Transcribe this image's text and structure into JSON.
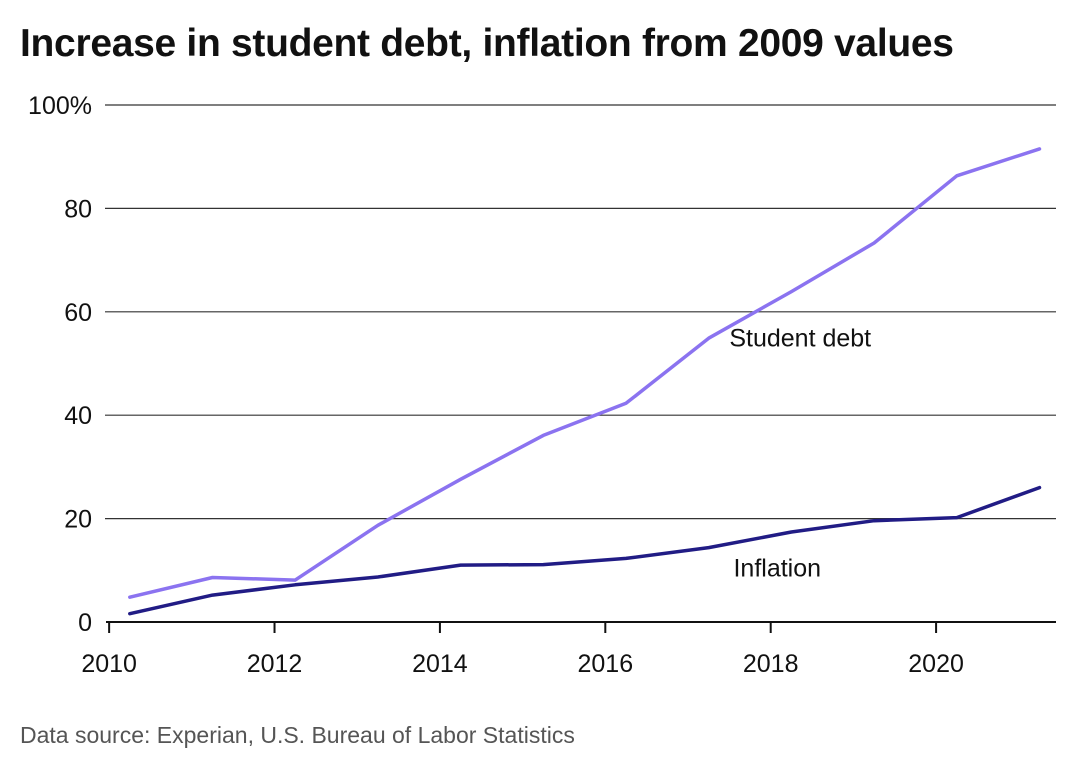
{
  "chart_data": {
    "type": "line",
    "title": "Increase in student debt, inflation from 2009 values",
    "source": "Data source: Experian, U.S. Bureau of Labor Statistics",
    "xlabel": "",
    "ylabel": "",
    "xlim": [
      2009.95,
      2021.45
    ],
    "ylim": [
      0,
      100
    ],
    "x_ticks": [
      2010,
      2012,
      2014,
      2016,
      2018,
      2020
    ],
    "y_ticks": [
      {
        "value": 0,
        "label": "0"
      },
      {
        "value": 20,
        "label": "20"
      },
      {
        "value": 40,
        "label": "40"
      },
      {
        "value": 60,
        "label": "60"
      },
      {
        "value": 80,
        "label": "80"
      },
      {
        "value": 100,
        "label": "100%"
      }
    ],
    "grid": true,
    "x": [
      2010.25,
      2011.25,
      2012.25,
      2013.25,
      2014.25,
      2015.25,
      2016.25,
      2017.25,
      2018.25,
      2019.25,
      2020.25,
      2021.25
    ],
    "series": [
      {
        "name": "Student debt",
        "color": "#8b73f0",
        "values": [
          4.8,
          8.6,
          8.1,
          18.7,
          27.6,
          36.1,
          42.3,
          54.9,
          63.9,
          73.3,
          86.3,
          91.5
        ],
        "label_at": [
          2017.5,
          53.3
        ]
      },
      {
        "name": "Inflation",
        "color": "#211c85",
        "values": [
          1.6,
          5.2,
          7.2,
          8.7,
          11.0,
          11.1,
          12.3,
          14.4,
          17.4,
          19.6,
          20.2,
          26.0
        ],
        "label_at": [
          2017.55,
          8.8
        ]
      }
    ]
  }
}
